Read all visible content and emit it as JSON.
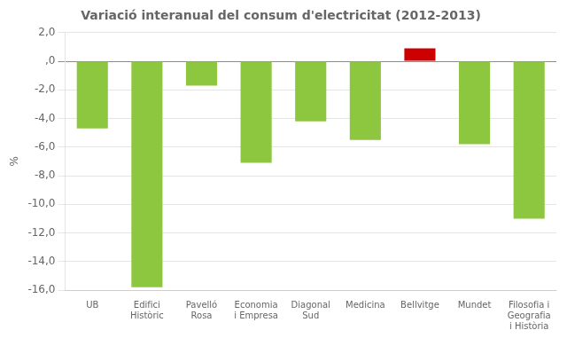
{
  "chart_data": {
    "type": "bar",
    "title": "Variació interanual del consum d'electricitat (2012-2013)",
    "ylabel": "%",
    "categories": [
      "UB",
      "Edifici\nHistòric",
      "Pavelló\nRosa",
      "Economia\ni Empresa",
      "Diagonal\nSud",
      "Medicina",
      "Bellvitge",
      "Mundet",
      "Filosofia i\nGeografia\ni Història"
    ],
    "values": [
      -4.7,
      -15.8,
      -1.7,
      -7.1,
      -4.2,
      -5.5,
      0.9,
      -5.8,
      -11.0
    ],
    "colors": [
      "#8dc63f",
      "#8dc63f",
      "#8dc63f",
      "#8dc63f",
      "#8dc63f",
      "#8dc63f",
      "#cc0000",
      "#8dc63f",
      "#8dc63f"
    ],
    "ylim": [
      -16.0,
      2.0
    ],
    "yticks": [
      {
        "value": 2.0,
        "label": "2,0"
      },
      {
        "value": 0.0,
        "label": ",0"
      },
      {
        "value": -2.0,
        "label": "-2,0"
      },
      {
        "value": -4.0,
        "label": "-4,0"
      },
      {
        "value": -6.0,
        "label": "-6,0"
      },
      {
        "value": -8.0,
        "label": "-8,0"
      },
      {
        "value": -10.0,
        "label": "-10,0"
      },
      {
        "value": -12.0,
        "label": "-12,0"
      },
      {
        "value": -14.0,
        "label": "-14,0"
      },
      {
        "value": -16.0,
        "label": "-16,0"
      }
    ],
    "grid": true
  }
}
